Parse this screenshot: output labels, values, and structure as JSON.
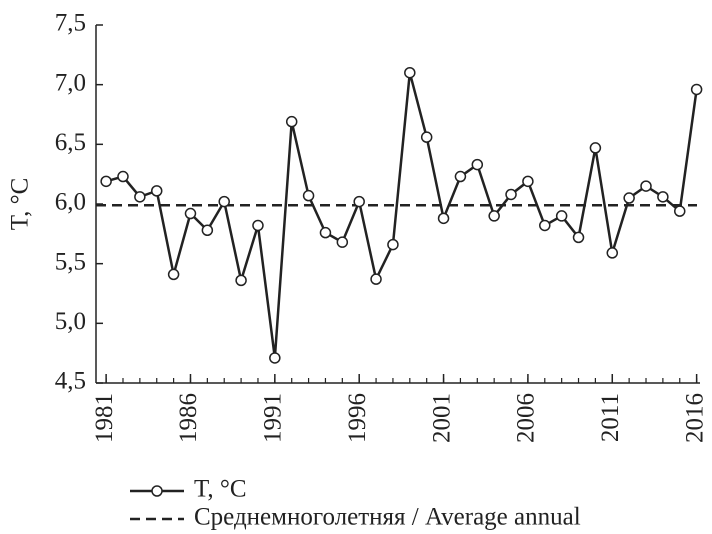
{
  "chart_data": {
    "type": "line",
    "ylabel": "T, °C",
    "x": [
      1981,
      1982,
      1983,
      1984,
      1985,
      1986,
      1987,
      1988,
      1989,
      1990,
      1991,
      1992,
      1993,
      1994,
      1995,
      1996,
      1997,
      1998,
      1999,
      2000,
      2001,
      2002,
      2003,
      2004,
      2005,
      2006,
      2007,
      2008,
      2009,
      2010,
      2011,
      2012,
      2013,
      2014,
      2015,
      2016
    ],
    "series": [
      {
        "name": "T, °C",
        "color": "#222222",
        "values": [
          6.19,
          6.23,
          6.06,
          6.11,
          5.41,
          5.92,
          5.78,
          6.02,
          5.36,
          5.82,
          4.71,
          6.69,
          6.07,
          5.76,
          5.68,
          6.02,
          5.37,
          5.66,
          7.1,
          6.56,
          5.88,
          6.23,
          6.33,
          5.9,
          6.08,
          6.19,
          5.82,
          5.9,
          5.72,
          6.47,
          5.59,
          6.05,
          6.15,
          6.06,
          5.94,
          6.96
        ]
      }
    ],
    "reference_line": {
      "name": "Среднемноголетняя / Average annual",
      "value": 5.99,
      "color": "#222222"
    },
    "xlim": [
      1980.4,
      2016.2
    ],
    "xticks": [
      1981,
      1986,
      1991,
      1996,
      2001,
      2006,
      2011,
      2016
    ],
    "ylim": [
      4.5,
      7.5
    ],
    "yticks": [
      {
        "value": 4.5,
        "label": "4,5"
      },
      {
        "value": 5.0,
        "label": "5,0"
      },
      {
        "value": 5.5,
        "label": "5,5"
      },
      {
        "value": 6.0,
        "label": "6,0"
      },
      {
        "value": 6.5,
        "label": "6,5"
      },
      {
        "value": 7.0,
        "label": "7,0"
      },
      {
        "value": 7.5,
        "label": "7,5"
      }
    ],
    "grid": false
  }
}
